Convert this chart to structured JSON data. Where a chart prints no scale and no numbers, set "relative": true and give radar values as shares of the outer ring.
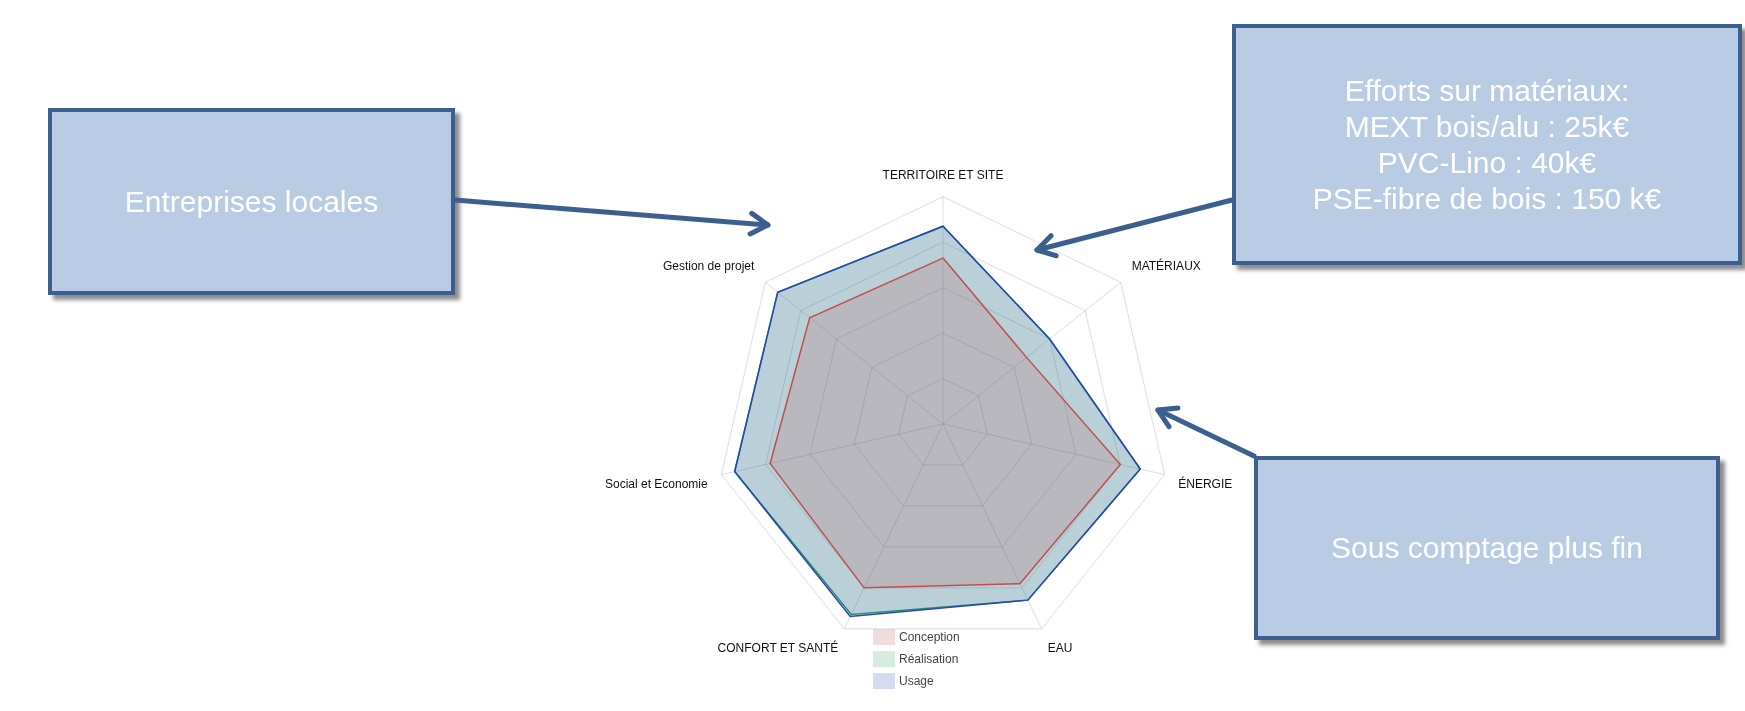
{
  "chart_data": {
    "type": "radar",
    "relative": true,
    "categories": [
      "TERRITOIRE ET SITE",
      "MATÉRIAUX",
      "ÉNERGIE",
      "EAU",
      "CONFORT ET SANTÉ",
      "Social et Economie",
      "Gestion de projet"
    ],
    "series": [
      {
        "name": "Conception",
        "color": "#c0504d",
        "values": [
          0.73,
          0.47,
          0.8,
          0.78,
          0.8,
          0.78,
          0.75
        ]
      },
      {
        "name": "Réalisation",
        "color": "#2ca05a",
        "values": [
          0.87,
          0.6,
          0.89,
          0.86,
          0.93,
          0.94,
          0.93
        ]
      },
      {
        "name": "Usage",
        "color": "#2846b4",
        "values": [
          0.87,
          0.6,
          0.89,
          0.86,
          0.94,
          0.94,
          0.93
        ]
      }
    ],
    "legend": "bottom",
    "grid": true,
    "annotations": [
      "Entreprises locales",
      "Efforts sur matériaux:\nMEXT bois/alu : 25k€\nPVC-Lino : 40k€\nPSE-fibre de bois : 150 k€",
      "Sous comptage plus fin"
    ]
  }
}
